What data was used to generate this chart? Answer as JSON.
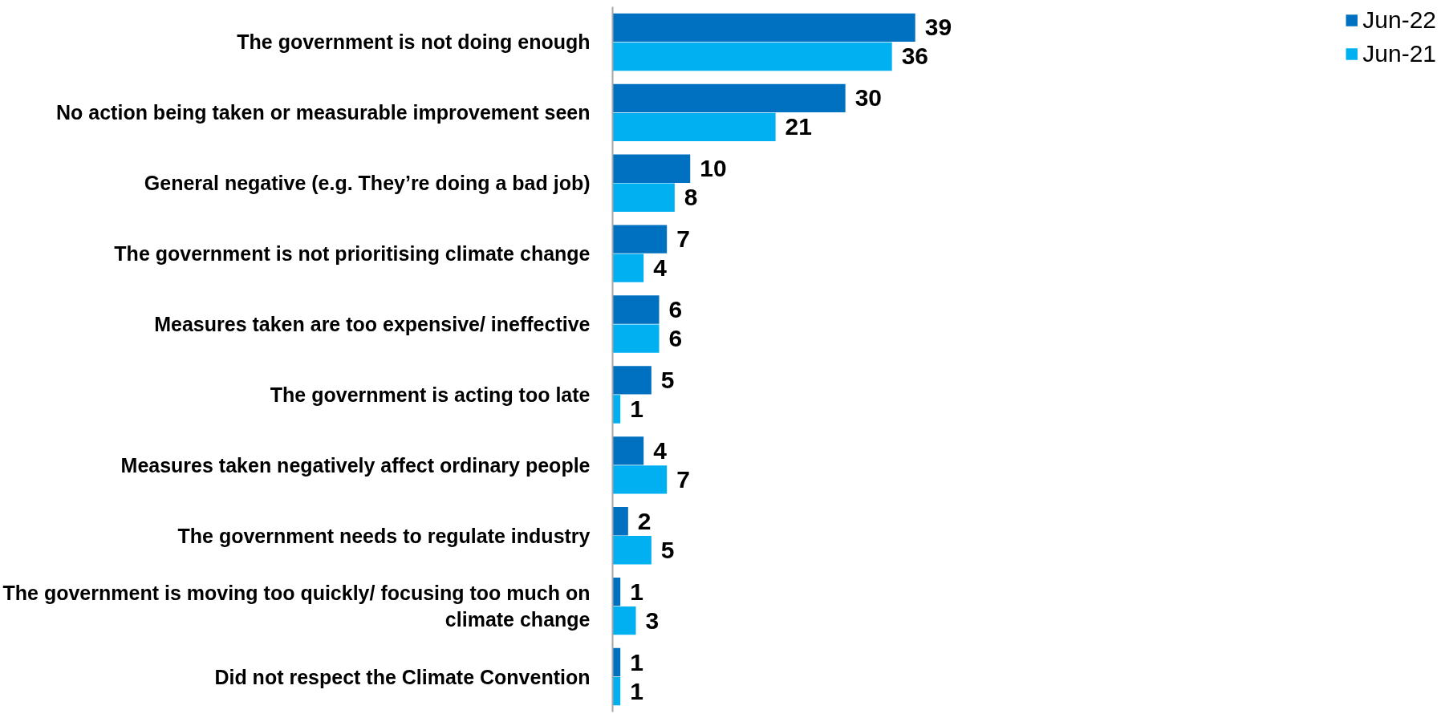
{
  "chart_data": {
    "type": "bar",
    "orientation": "horizontal",
    "data_labels": true,
    "grid": false,
    "legend": "top right",
    "categories": [
      "The government is not doing enough",
      "No action being taken or measurable improvement seen",
      "General negative (e.g. They’re doing a bad job)",
      "The government is not prioritising climate change",
      "Measures taken are too expensive/ ineffective",
      "The government is acting too late",
      "Measures taken negatively affect ordinary people",
      "The government needs to regulate industry",
      "The government is moving too quickly/ focusing too much on climate change",
      "Did not respect the Climate Convention"
    ],
    "series": [
      {
        "name": "Jun-22",
        "color": "#0070c0",
        "values": [
          39,
          30,
          10,
          7,
          6,
          5,
          4,
          2,
          1,
          1
        ]
      },
      {
        "name": "Jun-21",
        "color": "#00b0f0",
        "values": [
          36,
          21,
          8,
          4,
          6,
          1,
          7,
          5,
          3,
          1
        ]
      }
    ]
  }
}
